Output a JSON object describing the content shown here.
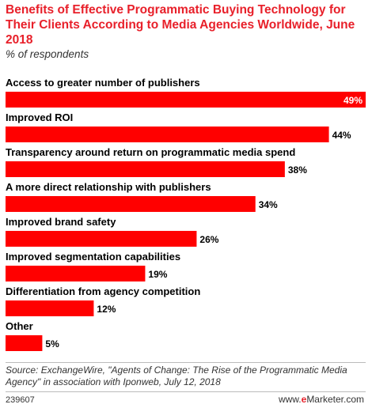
{
  "header": {
    "title": "Benefits of Effective Programmatic Buying Technology for Their Clients According to Media Agencies Worldwide, June 2018",
    "subtitle": "% of respondents"
  },
  "chart_data": {
    "type": "bar",
    "orientation": "horizontal",
    "categories": [
      "Access to greater number of publishers",
      "Improved ROI",
      "Transparency around return on programmatic media spend",
      "A more direct relationship with publishers",
      "Improved brand safety",
      "Improved segmentation capabilities",
      "Differentiation from agency competition",
      "Other"
    ],
    "values": [
      49,
      44,
      38,
      34,
      26,
      19,
      12,
      5
    ],
    "value_labels": [
      "49%",
      "44%",
      "38%",
      "34%",
      "26%",
      "19%",
      "12%",
      "5%"
    ],
    "unit": "%",
    "xlim": [
      0,
      49
    ],
    "bar_color": "#ff0000",
    "grid": false
  },
  "footer": {
    "source": "Source: ExchangeWire, \"Agents of Change: The Rise of the Programmatic Media Agency\" in association with Iponweb, July 12, 2018",
    "chart_id": "239607",
    "brand_prefix": "www.",
    "brand_e": "e",
    "brand_rest": "Marketer.com"
  },
  "colors": {
    "title": "#e8202a",
    "bar": "#ff0000",
    "text": "#000000"
  }
}
